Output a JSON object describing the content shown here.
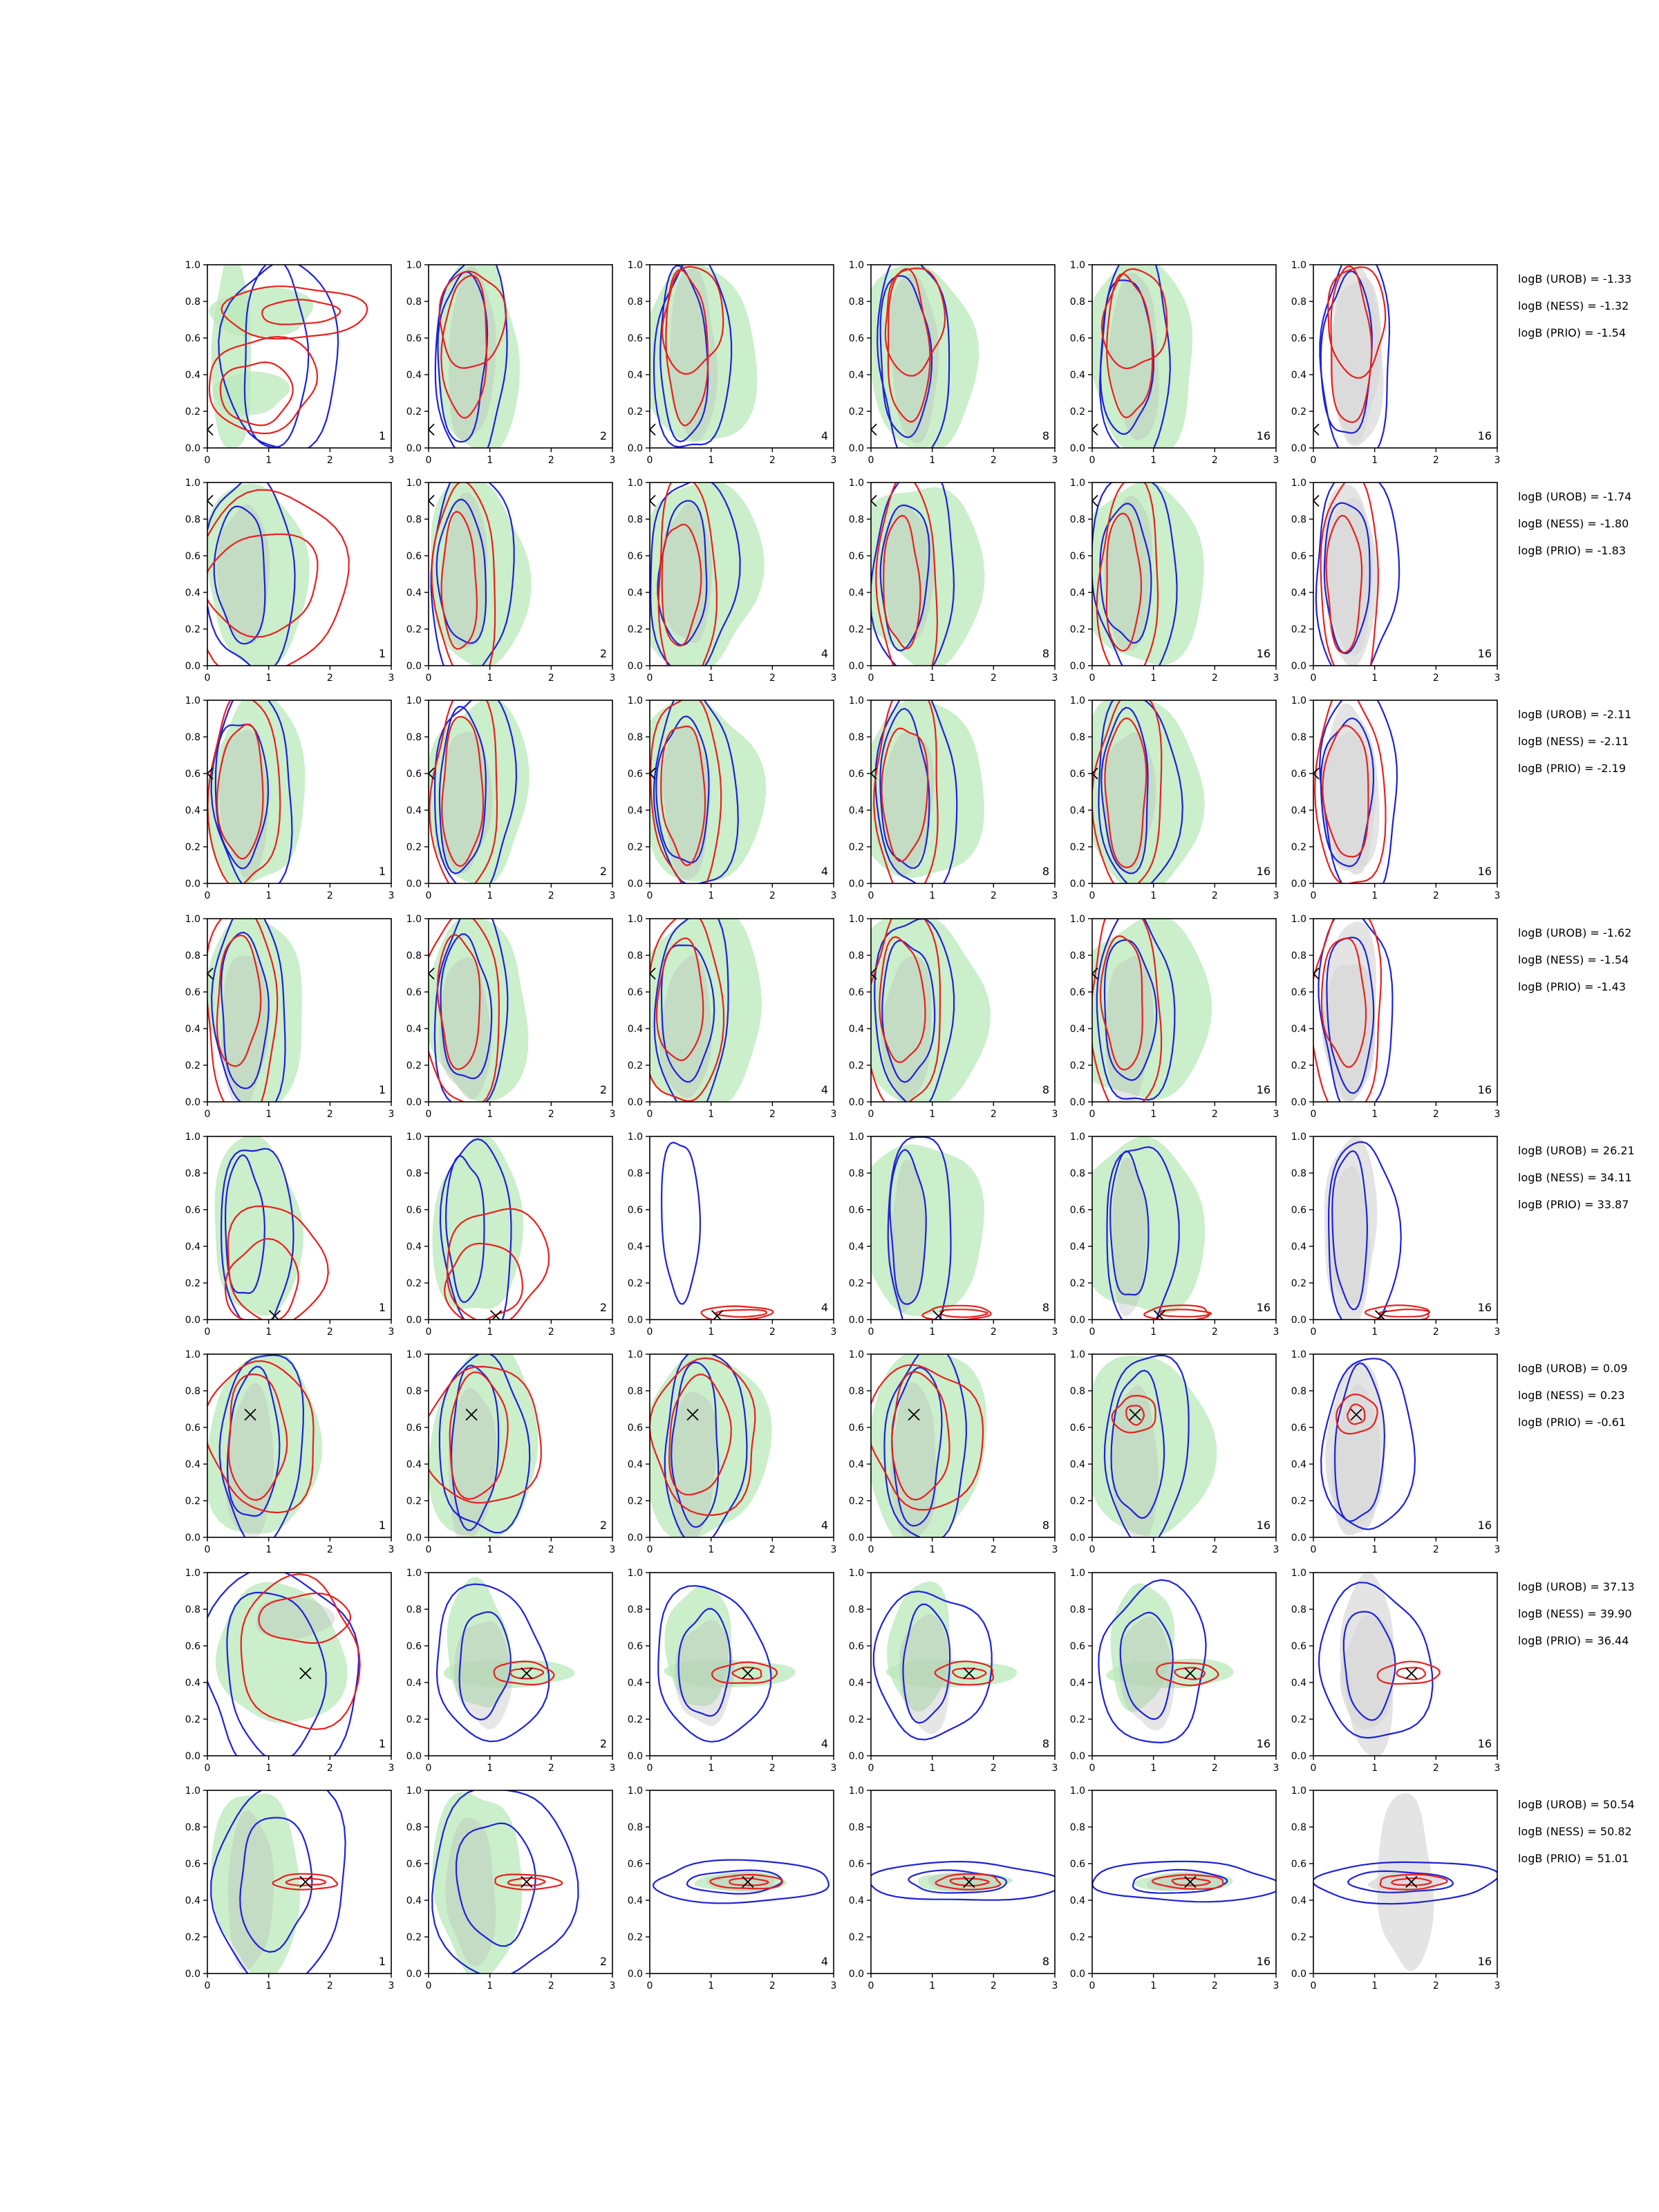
{
  "chart_data": {
    "type": "contour-grid",
    "rows": 8,
    "cols": 6,
    "xlim": [
      0,
      3
    ],
    "ylim": [
      0,
      1
    ],
    "xticks": [
      "0",
      "1",
      "2",
      "3"
    ],
    "yticks": [
      "0.0",
      "0.2",
      "0.4",
      "0.6",
      "0.8",
      "1.0"
    ],
    "panel_labels": [
      "1",
      "2",
      "4",
      "8",
      "16",
      "16"
    ],
    "colors": {
      "green_fill": "#b9e8b9",
      "grey_fill": "#b8b8b8",
      "grey_fill_last": "#d9d9d9",
      "red": "#e8201e",
      "blue": "#1d22d8",
      "marker": "#000000"
    },
    "rows_data": [
      {
        "truth": [
          0.0,
          0.1
        ],
        "logb": [
          "logB (UROB) = -1.33",
          "logB (NESS) = -1.32",
          "logB (PRIO) = -1.54"
        ]
      },
      {
        "truth": [
          0.0,
          0.9
        ],
        "logb": [
          "logB (UROB) = -1.74",
          "logB (NESS) = -1.80",
          "logB (PRIO) = -1.83"
        ]
      },
      {
        "truth": [
          0.0,
          0.6
        ],
        "logb": [
          "logB (UROB) = -2.11",
          "logB (NESS) = -2.11",
          "logB (PRIO) = -2.19"
        ]
      },
      {
        "truth": [
          0.0,
          0.7
        ],
        "logb": [
          "logB (UROB) = -1.62",
          "logB (NESS) = -1.54",
          "logB (PRIO) = -1.43"
        ]
      },
      {
        "truth": [
          1.1,
          0.02
        ],
        "logb": [
          "logB (UROB) = 26.21",
          "logB (NESS) = 34.11",
          "logB (PRIO) = 33.87"
        ]
      },
      {
        "truth": [
          0.7,
          0.67
        ],
        "logb": [
          "logB (UROB) = 0.09",
          "logB (NESS) = 0.23",
          "logB (PRIO) = -0.61"
        ]
      },
      {
        "truth": [
          1.6,
          0.45
        ],
        "logb": [
          "logB (UROB) = 37.13",
          "logB (NESS) = 39.90",
          "logB (PRIO) = 36.44"
        ]
      },
      {
        "truth": [
          1.6,
          0.5
        ],
        "logb": [
          "logB (UROB) = 50.54",
          "logB (NESS) = 50.82",
          "logB (PRIO) = 51.01"
        ]
      }
    ]
  }
}
